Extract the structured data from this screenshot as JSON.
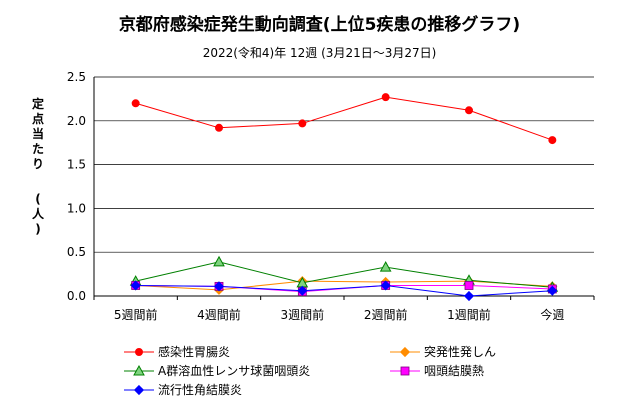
{
  "chart_data": {
    "type": "line",
    "title": "京都府感染症発生動向調査(上位5疾患の推移グラフ)",
    "subtitle": "2022(令和4)年 12週 (3月21日〜3月27日)",
    "ylabel": "定点当たり (人)",
    "ylim": [
      0,
      2.5
    ],
    "yticks": [
      "0.0",
      "0.5",
      "1.0",
      "1.5",
      "2.0",
      "2.5"
    ],
    "categories": [
      "5週間前",
      "4週間前",
      "3週間前",
      "2週間前",
      "1週間前",
      "今週"
    ],
    "grid": "horizontal",
    "legend_position": "bottom",
    "series": [
      {
        "name": "感染性胃腸炎",
        "color": "#ff0000",
        "marker": "circle",
        "values": [
          2.2,
          1.92,
          1.97,
          2.27,
          2.12,
          1.78
        ]
      },
      {
        "name": "突発性発しん",
        "color": "#ff8c00",
        "marker": "diamond",
        "values": [
          0.12,
          0.07,
          0.17,
          0.16,
          0.17,
          0.11
        ]
      },
      {
        "name": "A群溶血性レンサ球菌咽頭炎",
        "color": "#008000",
        "marker": "triangle",
        "values": [
          0.17,
          0.39,
          0.15,
          0.33,
          0.18,
          0.1
        ]
      },
      {
        "name": "咽頭結膜熱",
        "color": "#ff00ff",
        "marker": "square",
        "values": [
          0.12,
          0.11,
          0.05,
          0.12,
          0.12,
          0.08
        ]
      },
      {
        "name": "流行性角結膜炎",
        "color": "#0000ff",
        "marker": "diamond",
        "values": [
          0.12,
          0.11,
          0.06,
          0.12,
          0.0,
          0.06
        ]
      }
    ]
  }
}
